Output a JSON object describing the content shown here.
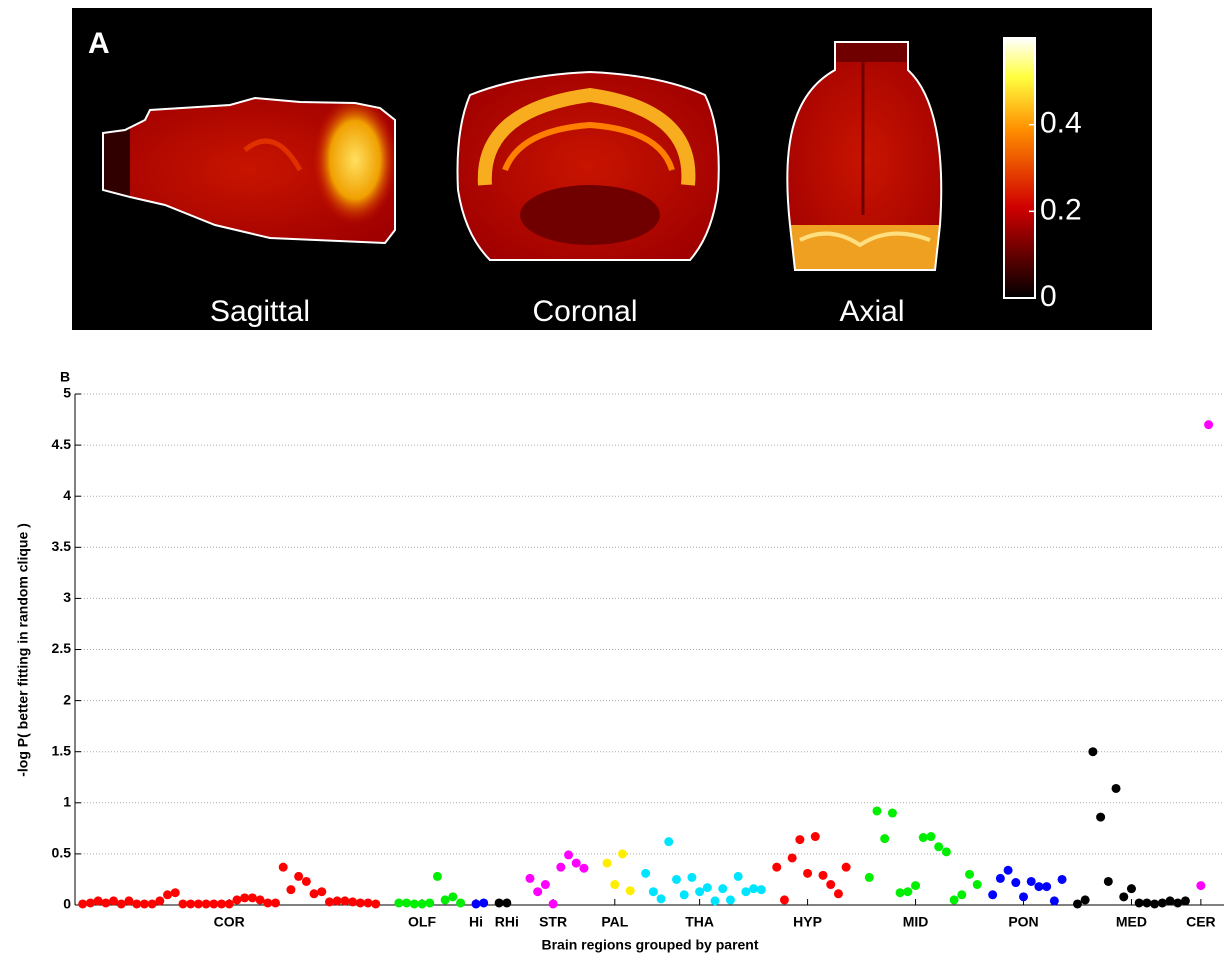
{
  "chart_data": [
    {
      "type": "heatmap",
      "title": "A",
      "panels": [
        "Sagittal",
        "Coronal",
        "Axial"
      ],
      "colorbar": {
        "lim": [
          0,
          0.6
        ],
        "ticks": [
          0,
          0.2,
          0.4
        ]
      }
    },
    {
      "type": "scatter",
      "title": "B",
      "x_label": "Brain regions grouped by parent",
      "y_label": "-log P( better fitting in random clique )",
      "xlim": [
        0,
        149
      ],
      "ylim": [
        0,
        5
      ],
      "yticks": [
        0,
        0.5,
        1,
        1.5,
        2,
        2.5,
        3,
        3.5,
        4,
        4.5,
        5
      ],
      "xticks": [
        {
          "value": 20,
          "label": "COR"
        },
        {
          "value": 45,
          "label": "OLF"
        },
        {
          "value": 52,
          "label": "Hi"
        },
        {
          "value": 56,
          "label": "RHi"
        },
        {
          "value": 62,
          "label": "STR"
        },
        {
          "value": 70,
          "label": "PAL"
        },
        {
          "value": 81,
          "label": "THA"
        },
        {
          "value": 95,
          "label": "HYP"
        },
        {
          "value": 109,
          "label": "MID"
        },
        {
          "value": 123,
          "label": "PON"
        },
        {
          "value": 137,
          "label": "MED"
        },
        {
          "value": 146,
          "label": "CER"
        }
      ],
      "grid": true,
      "series": [
        {
          "color": "#ff0000",
          "x": [
            1,
            2,
            3,
            4,
            5,
            6,
            7,
            8,
            9,
            10,
            11,
            12,
            13,
            14,
            15,
            16,
            17,
            18,
            19,
            20,
            21,
            22,
            23,
            24,
            25,
            26,
            27,
            28,
            29,
            30,
            31,
            32,
            33,
            34,
            35,
            36,
            37,
            38,
            39
          ],
          "values": [
            0.01,
            0.02,
            0.04,
            0.02,
            0.04,
            0.01,
            0.04,
            0.01,
            0.01,
            0.01,
            0.04,
            0.1,
            0.12,
            0.01,
            0.01,
            0.01,
            0.01,
            0.01,
            0.01,
            0.01,
            0.05,
            0.07,
            0.07,
            0.05,
            0.02,
            0.02,
            0.37,
            0.15,
            0.28,
            0.23,
            0.11,
            0.13,
            0.03,
            0.04,
            0.04,
            0.03,
            0.02,
            0.02,
            0.01
          ]
        },
        {
          "color": "#00ee00",
          "x": [
            42,
            43,
            44,
            45,
            46,
            47,
            48,
            49,
            50
          ],
          "values": [
            0.02,
            0.02,
            0.01,
            0.01,
            0.02,
            0.28,
            0.05,
            0.08,
            0.02
          ]
        },
        {
          "color": "#0000ff",
          "x": [
            52,
            53
          ],
          "values": [
            0.01,
            0.02
          ]
        },
        {
          "color": "#000000",
          "x": [
            55,
            56
          ],
          "values": [
            0.02,
            0.02
          ]
        },
        {
          "color": "#ff00ff",
          "x": [
            59,
            60,
            61,
            62,
            63,
            64,
            65,
            66
          ],
          "values": [
            0.26,
            0.13,
            0.2,
            0.01,
            0.37,
            0.49,
            0.41,
            0.36
          ]
        },
        {
          "color": "#ffee00",
          "x": [
            69,
            70,
            71,
            72
          ],
          "values": [
            0.41,
            0.2,
            0.5,
            0.14
          ]
        },
        {
          "color": "#00e5ff",
          "x": [
            74,
            75,
            76,
            77,
            78,
            79,
            80,
            81,
            82,
            83,
            84,
            85,
            86,
            87,
            88,
            89
          ],
          "values": [
            0.31,
            0.13,
            0.06,
            0.62,
            0.25,
            0.1,
            0.27,
            0.13,
            0.17,
            0.04,
            0.16,
            0.05,
            0.28,
            0.13,
            0.16,
            0.15
          ]
        },
        {
          "color": "#ff0000",
          "x": [
            91,
            92,
            93,
            94,
            95,
            96,
            97,
            98,
            99,
            100
          ],
          "values": [
            0.37,
            0.05,
            0.46,
            0.64,
            0.31,
            0.67,
            0.29,
            0.2,
            0.11,
            0.37
          ]
        },
        {
          "color": "#00ee00",
          "x": [
            103,
            104,
            105,
            106,
            107,
            108,
            109,
            110,
            111,
            112,
            113,
            114,
            115,
            116,
            117
          ],
          "values": [
            0.27,
            0.92,
            0.65,
            0.9,
            0.12,
            0.13,
            0.19,
            0.66,
            0.67,
            0.57,
            0.52,
            0.05,
            0.1,
            0.3,
            0.2
          ]
        },
        {
          "color": "#0000ff",
          "x": [
            119,
            120,
            121,
            122,
            123,
            124,
            125,
            126,
            127,
            128
          ],
          "values": [
            0.1,
            0.26,
            0.34,
            0.22,
            0.08,
            0.23,
            0.18,
            0.18,
            0.04,
            0.25
          ]
        },
        {
          "color": "#000000",
          "x": [
            130,
            131,
            132,
            133,
            134,
            135,
            136,
            137,
            138,
            139,
            140,
            141,
            142,
            143,
            144
          ],
          "values": [
            0.01,
            0.05,
            1.5,
            0.86,
            0.23,
            1.14,
            0.08,
            0.16,
            0.02,
            0.02,
            0.01,
            0.02,
            0.04,
            0.02,
            0.04
          ]
        },
        {
          "color": "#ff00ff",
          "x": [
            146,
            147
          ],
          "values": [
            0.19,
            4.7
          ]
        }
      ]
    }
  ]
}
